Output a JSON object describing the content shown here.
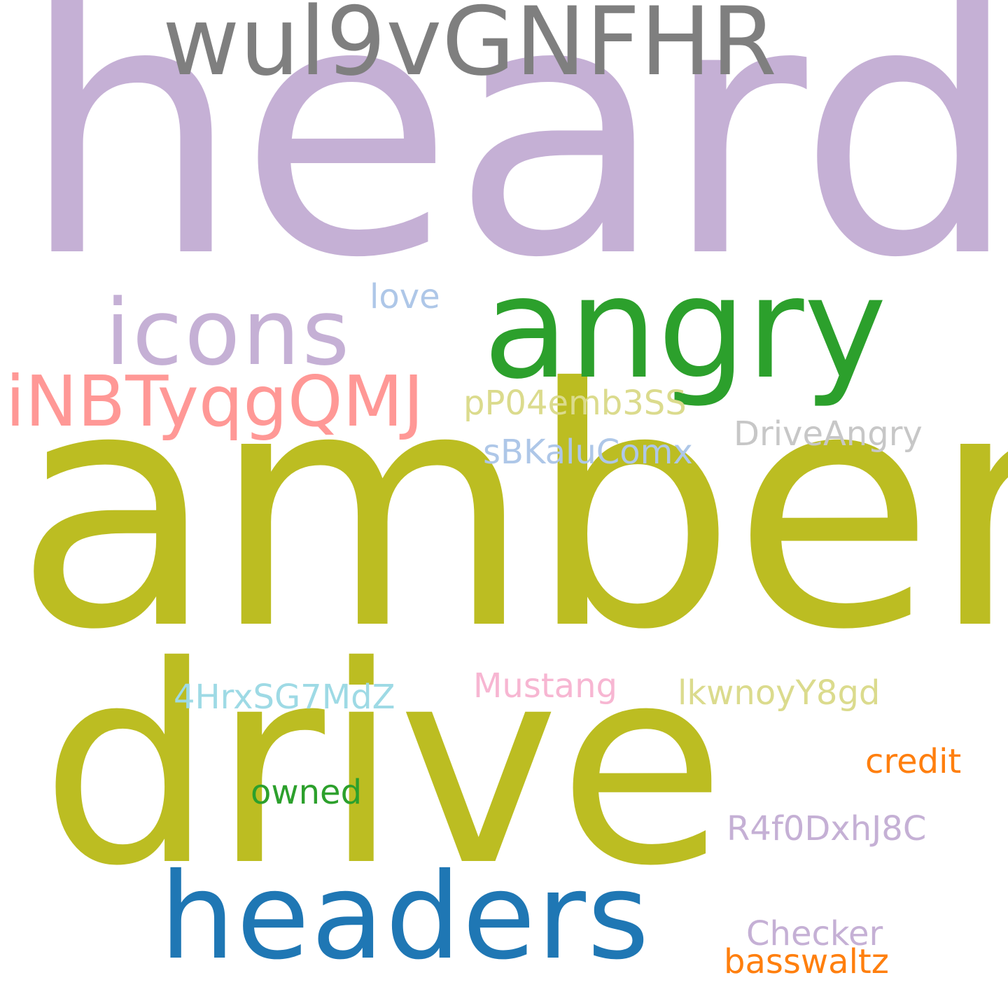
{
  "words": {
    "heard": {
      "text": "heard",
      "color": "#c5b0d5"
    },
    "amber": {
      "text": "amber",
      "color": "#bcbd22"
    },
    "drive": {
      "text": "drive",
      "color": "#bcbd22"
    },
    "angry": {
      "text": "angry",
      "color": "#2ca02c"
    },
    "wul9vGNFHR": {
      "text": "wul9vGNFHR",
      "color": "#7f7f7f"
    },
    "headers": {
      "text": "headers",
      "color": "#1f77b4"
    },
    "icons": {
      "text": "icons",
      "color": "#c5b0d5"
    },
    "iNBTyqgQMJ": {
      "text": "iNBTyqgQMJ",
      "color": "#ff9896"
    },
    "love": {
      "text": "love",
      "color": "#aec7e8"
    },
    "pP04emb3SS": {
      "text": "pP04emb3SS",
      "color": "#dbdb8d"
    },
    "DriveAngry": {
      "text": "DriveAngry",
      "color": "#c7c7c7"
    },
    "sBKaluComx": {
      "text": "sBKaluComx",
      "color": "#aec7e8"
    },
    "4HrxSG7MdZ": {
      "text": "4HrxSG7MdZ",
      "color": "#9edae5"
    },
    "Mustang": {
      "text": "Mustang",
      "color": "#f7b6d2"
    },
    "lkwnoyY8gd": {
      "text": "lkwnoyY8gd",
      "color": "#dbdb8d"
    },
    "credit": {
      "text": "credit",
      "color": "#ff7f0e"
    },
    "owned": {
      "text": "owned",
      "color": "#2ca02c"
    },
    "R4f0DxhJ8C": {
      "text": "R4f0DxhJ8C",
      "color": "#c5b0d5"
    },
    "Checker": {
      "text": "Checker",
      "color": "#c5b0d5"
    },
    "basswaltz": {
      "text": "basswaltz",
      "color": "#ff7f0e"
    }
  }
}
